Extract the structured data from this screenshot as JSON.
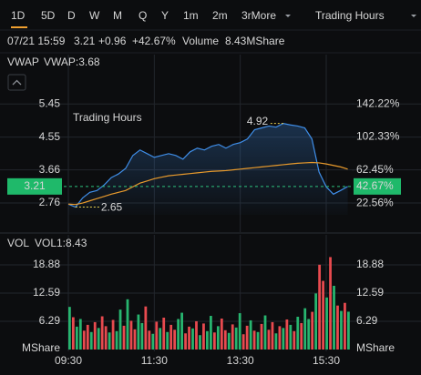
{
  "tabs": [
    "1D",
    "5D",
    "D",
    "W",
    "M",
    "Q",
    "Y",
    "1m",
    "2m",
    "3rMore"
  ],
  "active_tab": 0,
  "session_menu": "Trading Hours",
  "quote": {
    "date": "07/21 15:59",
    "price": "3.21",
    "change": "+0.96",
    "change_pct": "+42.67%",
    "volume_label": "Volume",
    "volume": "8.43MShare"
  },
  "chart_data": [
    {
      "type": "line",
      "indicator": "VWAP",
      "indicator_value": "VWAP:3.68",
      "watermark": "Trading Hours",
      "x": [
        "09:30",
        "09:40",
        "09:50",
        "10:00",
        "10:10",
        "10:20",
        "10:30",
        "10:40",
        "10:50",
        "11:00",
        "11:10",
        "11:20",
        "11:30",
        "11:40",
        "11:50",
        "12:00",
        "12:10",
        "12:20",
        "12:30",
        "12:40",
        "12:50",
        "13:00",
        "13:10",
        "13:20",
        "13:30",
        "13:40",
        "13:50",
        "14:00",
        "14:10",
        "14:20",
        "14:30",
        "14:40",
        "14:50",
        "15:00",
        "15:10",
        "15:20",
        "15:30",
        "15:40",
        "15:50",
        "16:00"
      ],
      "xticks": [
        "09:30",
        "11:30",
        "13:30",
        "15:30"
      ],
      "series": [
        {
          "name": "Price",
          "color": "#3f8ee8",
          "values": [
            2.73,
            2.65,
            2.9,
            3.05,
            3.1,
            3.25,
            3.45,
            3.55,
            3.7,
            4.05,
            4.2,
            4.1,
            4.0,
            4.05,
            4.1,
            4.05,
            3.95,
            4.15,
            4.25,
            4.2,
            4.3,
            4.35,
            4.25,
            4.35,
            4.4,
            4.5,
            4.75,
            4.8,
            4.85,
            4.82,
            4.92,
            4.88,
            4.85,
            4.8,
            4.5,
            3.6,
            3.2,
            3.0,
            3.1,
            3.21
          ]
        },
        {
          "name": "VWAP",
          "color": "#e89a2c",
          "values": [
            2.73,
            2.72,
            2.76,
            2.82,
            2.88,
            2.94,
            3.0,
            3.05,
            3.1,
            3.2,
            3.3,
            3.36,
            3.42,
            3.46,
            3.5,
            3.52,
            3.54,
            3.56,
            3.58,
            3.6,
            3.62,
            3.63,
            3.64,
            3.66,
            3.68,
            3.7,
            3.72,
            3.74,
            3.76,
            3.78,
            3.8,
            3.82,
            3.84,
            3.85,
            3.86,
            3.85,
            3.82,
            3.78,
            3.74,
            3.68
          ]
        }
      ],
      "annotations": [
        {
          "label": "4.92",
          "x": "14:30"
        },
        {
          "label": "2.65",
          "x": "09:40"
        }
      ],
      "last_price": 3.21,
      "last_pct": {
        "value": 42.67,
        "label": "42.67%"
      },
      "ylim": [
        2.44,
        5.85
      ],
      "yticks": [
        5.45,
        4.55,
        3.66,
        2.76
      ],
      "y2lim": [
        8.45,
        160.0
      ],
      "y2ticks": [
        {
          "value": 142.22,
          "label": "142.22%"
        },
        {
          "value": 102.33,
          "label": "102.33%"
        },
        {
          "value": 62.45,
          "label": "62.45%"
        },
        {
          "value": 22.56,
          "label": "22.56%"
        }
      ],
      "grid": true
    },
    {
      "type": "bar",
      "indicator": "VOL",
      "indicator_value": "VOL1:8.43",
      "ylabel": "MShare",
      "values": [
        9.5,
        7.2,
        5.1,
        6.8,
        4.2,
        5.5,
        3.9,
        6.1,
        4.8,
        7.4,
        5.2,
        3.8,
        6.6,
        4.1,
        8.9,
        5.3,
        11.2,
        6.4,
        4.5,
        7.8,
        5.9,
        9.6,
        4.2,
        3.5,
        6.2,
        4.8,
        7.1,
        3.9,
        5.5,
        4.4,
        6.8,
        8.2,
        3.6,
        5.1,
        4.7,
        6.3,
        3.2,
        5.8,
        4.1,
        7.5,
        3.8,
        5.2,
        6.9,
        4.3,
        3.7,
        5.6,
        4.9,
        8.1,
        3.4,
        5.3,
        6.5,
        4.2,
        3.9,
        5.7,
        7.6,
        4.4,
        6.1,
        3.6,
        5.2,
        4.8,
        6.7,
        5.5,
        4.1,
        7.3,
        5.9,
        9.2,
        6.8,
        8.4,
        12.5,
        18.9,
        15.3,
        11.6,
        20.6,
        14.2,
        9.8,
        8.6,
        10.4,
        8.43
      ],
      "colors": [
        "#27b56f",
        "#e84a4f",
        "#27b56f",
        "#27b56f",
        "#e84a4f",
        "#e84a4f",
        "#27b56f",
        "#e84a4f",
        "#27b56f",
        "#e84a4f",
        "#e84a4f",
        "#27b56f",
        "#e84a4f",
        "#27b56f",
        "#27b56f",
        "#e84a4f",
        "#27b56f",
        "#e84a4f",
        "#e84a4f",
        "#27b56f",
        "#27b56f",
        "#e84a4f",
        "#e84a4f",
        "#27b56f",
        "#e84a4f",
        "#27b56f",
        "#e84a4f",
        "#27b56f",
        "#e84a4f",
        "#e84a4f",
        "#27b56f",
        "#27b56f",
        "#e84a4f",
        "#e84a4f",
        "#27b56f",
        "#e84a4f",
        "#27b56f",
        "#e84a4f",
        "#27b56f",
        "#27b56f",
        "#e84a4f",
        "#27b56f",
        "#e84a4f",
        "#e84a4f",
        "#27b56f",
        "#e84a4f",
        "#27b56f",
        "#27b56f",
        "#e84a4f",
        "#e84a4f",
        "#27b56f",
        "#e84a4f",
        "#27b56f",
        "#e84a4f",
        "#27b56f",
        "#e84a4f",
        "#e84a4f",
        "#27b56f",
        "#e84a4f",
        "#27b56f",
        "#e84a4f",
        "#27b56f",
        "#e84a4f",
        "#27b56f",
        "#e84a4f",
        "#27b56f",
        "#27b56f",
        "#e84a4f",
        "#27b56f",
        "#e84a4f",
        "#e84a4f",
        "#27b56f",
        "#e84a4f",
        "#27b56f",
        "#e84a4f",
        "#27b56f",
        "#e84a4f",
        "#27b56f"
      ],
      "ylim": [
        0,
        21.1
      ],
      "yticks": [
        18.88,
        12.59,
        6.29
      ]
    }
  ]
}
